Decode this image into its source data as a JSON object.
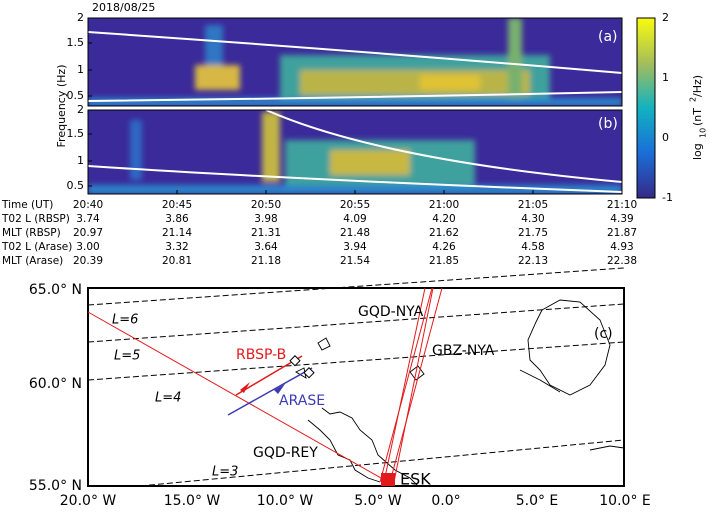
{
  "date": "2018/08/25",
  "spectrogram": {
    "panels": [
      {
        "label": "(a)"
      },
      {
        "label": "(b)"
      }
    ],
    "y_label": "Frequency (Hz)",
    "y_ticks": [
      "2",
      "1.5",
      "1",
      "0.5"
    ],
    "colorbar": {
      "label_parts": [
        "log",
        "10",
        "(nT",
        "2",
        "/Hz)"
      ],
      "ticks": [
        "2",
        "1",
        "0",
        "-1"
      ]
    }
  },
  "table": {
    "rows": [
      [
        "Time (UT)",
        "20:40",
        "20:45",
        "20:50",
        "20:55",
        "21:00",
        "21:05",
        "21:10"
      ],
      [
        "T02 L (RBSP)",
        "3.74",
        "3.86",
        "3.98",
        "4.09",
        "4.20",
        "4.30",
        "4.39"
      ],
      [
        "MLT (RBSP)",
        "20.97",
        "21.14",
        "21.31",
        "21.48",
        "21.62",
        "21.75",
        "21.87"
      ],
      [
        "T02 L (Arase)",
        "3.00",
        "3.32",
        "3.64",
        "3.94",
        "4.26",
        "4.58",
        "4.93"
      ],
      [
        "MLT (Arase)",
        "20.39",
        "20.81",
        "21.18",
        "21.54",
        "21.85",
        "22.13",
        "22.38"
      ]
    ]
  },
  "map": {
    "panel_label": "(c)",
    "lat_labels": [
      "65.0° N",
      "60.0° N",
      "55.0° N"
    ],
    "lon_labels": [
      "20.0° W",
      "15.0° W",
      "10.0° W",
      "5.0° W",
      "0.0°",
      "5.0° E",
      "10.0° E"
    ],
    "l_labels": [
      "L=6",
      "L=5",
      "L=4",
      "L=3"
    ],
    "paths": [
      "GQD-NYA",
      "GBZ-NYA",
      "GQD-REY"
    ],
    "satellites": [
      "RBSP-B",
      "ARASE"
    ],
    "station": "ESK"
  }
}
